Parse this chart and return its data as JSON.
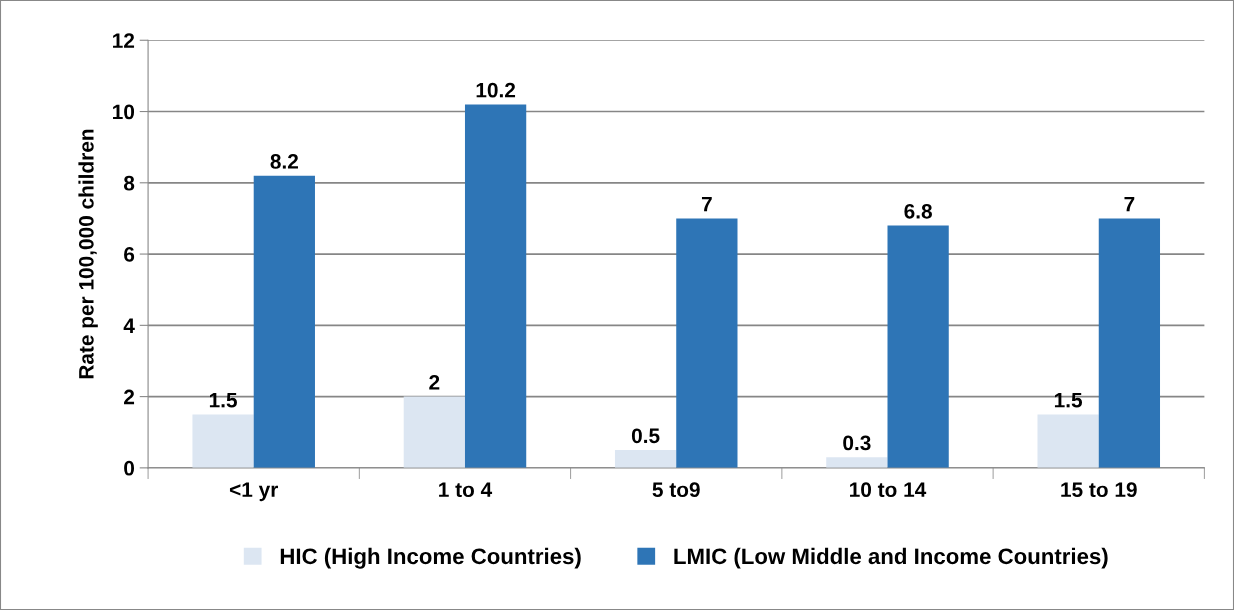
{
  "chart_data": {
    "type": "bar",
    "ylabel": "Rate per 100,000 children",
    "categories": [
      "<1 yr",
      "1 to 4",
      "5 to9",
      "10 to 14",
      "15 to 19"
    ],
    "series": [
      {
        "name": "HIC (High Income Countries)",
        "color": "#dce6f2",
        "values": [
          1.5,
          2,
          0.5,
          0.3,
          1.5
        ]
      },
      {
        "name": "LMIC (Low Middle and Income Countries)",
        "color": "#2e75b6",
        "values": [
          8.2,
          10.2,
          7,
          6.8,
          7
        ]
      }
    ],
    "ylim": [
      0,
      12
    ],
    "yticks": [
      0,
      2,
      4,
      6,
      8,
      10,
      12
    ],
    "grid": "y",
    "legend": "bottom",
    "data_labels": true
  }
}
